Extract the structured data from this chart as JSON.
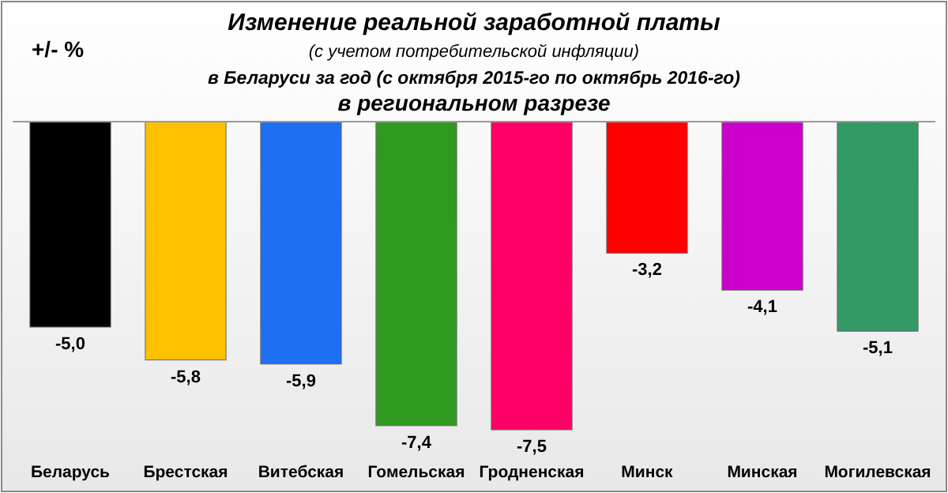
{
  "chart_data": {
    "type": "bar",
    "title": "Изменение реальной заработной платы",
    "subtitle": "(с учетом потребительской инфляции)\nв Беларуси за год  (с октября 2015-го по октябрь 2016-го)\nв региональном разрезе",
    "ylabel": "+/- %",
    "categories": [
      "Беларусь",
      "Брестская",
      "Витебская",
      "Гомельская",
      "Гродненская",
      "Минск",
      "Минская",
      "Могилевская"
    ],
    "values": [
      -5.0,
      -5.8,
      -5.9,
      -7.4,
      -7.5,
      -3.2,
      -4.1,
      -5.1
    ],
    "colors": [
      "#000000",
      "#ffc000",
      "#1f6ff2",
      "#2f9a1f",
      "#ff0066",
      "#ff0000",
      "#cc00cc",
      "#339966"
    ],
    "value_labels": [
      "-5,0",
      "-5,8",
      "-5,9",
      "-7,4",
      "-7,5",
      "-3,2",
      "-4,1",
      "-5,1"
    ]
  }
}
